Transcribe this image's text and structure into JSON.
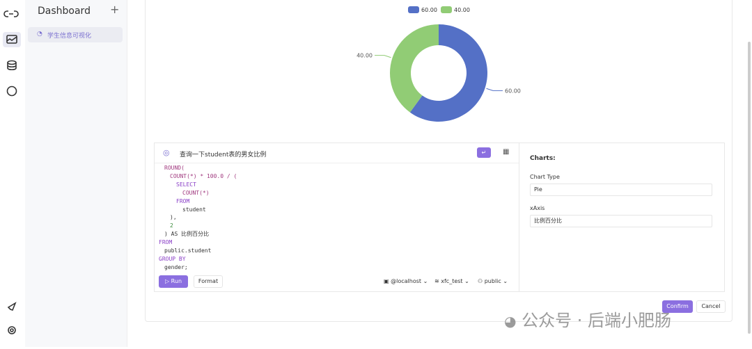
{
  "sidebar": {
    "title": "Dashboard",
    "items": [
      "学生信息可视化"
    ]
  },
  "chart": {
    "type": "pie",
    "categories": [
      "60.00",
      "40.00"
    ],
    "values": [
      60,
      40
    ],
    "value_labels": [
      "60.00",
      "40.00"
    ],
    "colors": [
      "#5470c6",
      "#91cc75"
    ]
  },
  "editor": {
    "prompt": "查询一下student表的男女比例",
    "lines": [
      "ROUND(",
      "COUNT(*) * 100.0 / (",
      "SELECT",
      "COUNT(*)",
      "FROM",
      "student",
      "),",
      "2",
      ") AS 比例百分比",
      "FROM",
      "public.student",
      "GROUP BY",
      "gender;"
    ],
    "run": "Run",
    "format": "Format",
    "host": "@localhost",
    "database": "xfc_test",
    "schema": "public"
  },
  "settings": {
    "title": "Charts:",
    "chart_type_label": "Chart Type",
    "chart_type": "Pie",
    "xaxis_label": "xAxis",
    "xaxis": "比例百分比"
  },
  "footer": {
    "confirm": "Confirm",
    "cancel": "Cancel"
  },
  "watermark": "公众号 · 后端小肥肠"
}
